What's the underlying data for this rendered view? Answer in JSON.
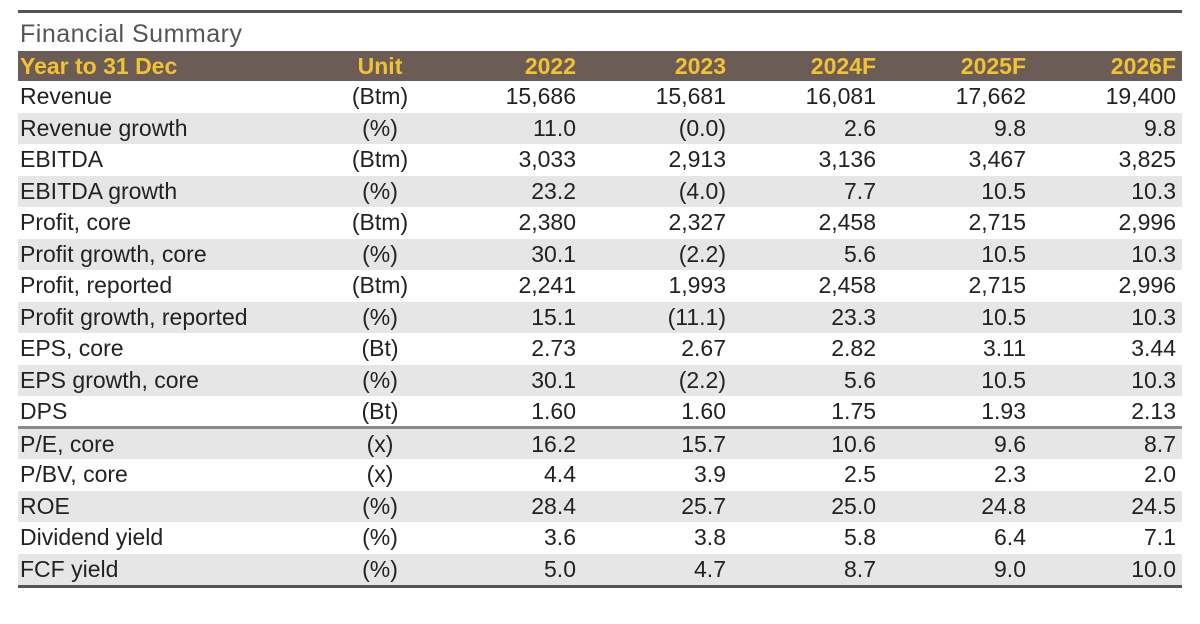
{
  "title": "Financial Summary",
  "header": {
    "label": "Year to 31 Dec",
    "unit": "Unit",
    "years": [
      "2022",
      "2023",
      "2024F",
      "2025F",
      "2026F"
    ]
  },
  "rows": [
    {
      "label": "Revenue",
      "unit": "(Btm)",
      "values": [
        "15,686",
        "15,681",
        "16,081",
        "17,662",
        "19,400"
      ]
    },
    {
      "label": "Revenue growth",
      "unit": "(%)",
      "values": [
        "11.0",
        "(0.0)",
        "2.6",
        "9.8",
        "9.8"
      ]
    },
    {
      "label": "EBITDA",
      "unit": "(Btm)",
      "values": [
        "3,033",
        "2,913",
        "3,136",
        "3,467",
        "3,825"
      ]
    },
    {
      "label": "EBITDA growth",
      "unit": "(%)",
      "values": [
        "23.2",
        "(4.0)",
        "7.7",
        "10.5",
        "10.3"
      ]
    },
    {
      "label": "Profit, core",
      "unit": "(Btm)",
      "values": [
        "2,380",
        "2,327",
        "2,458",
        "2,715",
        "2,996"
      ]
    },
    {
      "label": "Profit growth, core",
      "unit": "(%)",
      "values": [
        "30.1",
        "(2.2)",
        "5.6",
        "10.5",
        "10.3"
      ]
    },
    {
      "label": "Profit, reported",
      "unit": "(Btm)",
      "values": [
        "2,241",
        "1,993",
        "2,458",
        "2,715",
        "2,996"
      ]
    },
    {
      "label": "Profit growth, reported",
      "unit": "(%)",
      "values": [
        "15.1",
        "(11.1)",
        "23.3",
        "10.5",
        "10.3"
      ]
    },
    {
      "label": "EPS, core",
      "unit": "(Bt)",
      "values": [
        "2.73",
        "2.67",
        "2.82",
        "3.11",
        "3.44"
      ]
    },
    {
      "label": "EPS growth, core",
      "unit": "(%)",
      "values": [
        "30.1",
        "(2.2)",
        "5.6",
        "10.5",
        "10.3"
      ]
    },
    {
      "label": "DPS",
      "unit": "(Bt)",
      "values": [
        "1.60",
        "1.60",
        "1.75",
        "1.93",
        "2.13"
      ]
    },
    {
      "label": "P/E, core",
      "unit": "(x)",
      "values": [
        "16.2",
        "15.7",
        "10.6",
        "9.6",
        "8.7"
      ]
    },
    {
      "label": "P/BV, core",
      "unit": "(x)",
      "values": [
        "4.4",
        "3.9",
        "2.5",
        "2.3",
        "2.0"
      ]
    },
    {
      "label": "ROE",
      "unit": "(%)",
      "values": [
        "28.4",
        "25.7",
        "25.0",
        "24.8",
        "24.5"
      ]
    },
    {
      "label": "Dividend yield",
      "unit": "(%)",
      "values": [
        "3.6",
        "3.8",
        "5.8",
        "6.4",
        "7.1"
      ]
    },
    {
      "label": "FCF yield",
      "unit": "(%)",
      "values": [
        "5.0",
        "4.7",
        "8.7",
        "9.0",
        "10.0"
      ]
    }
  ]
}
